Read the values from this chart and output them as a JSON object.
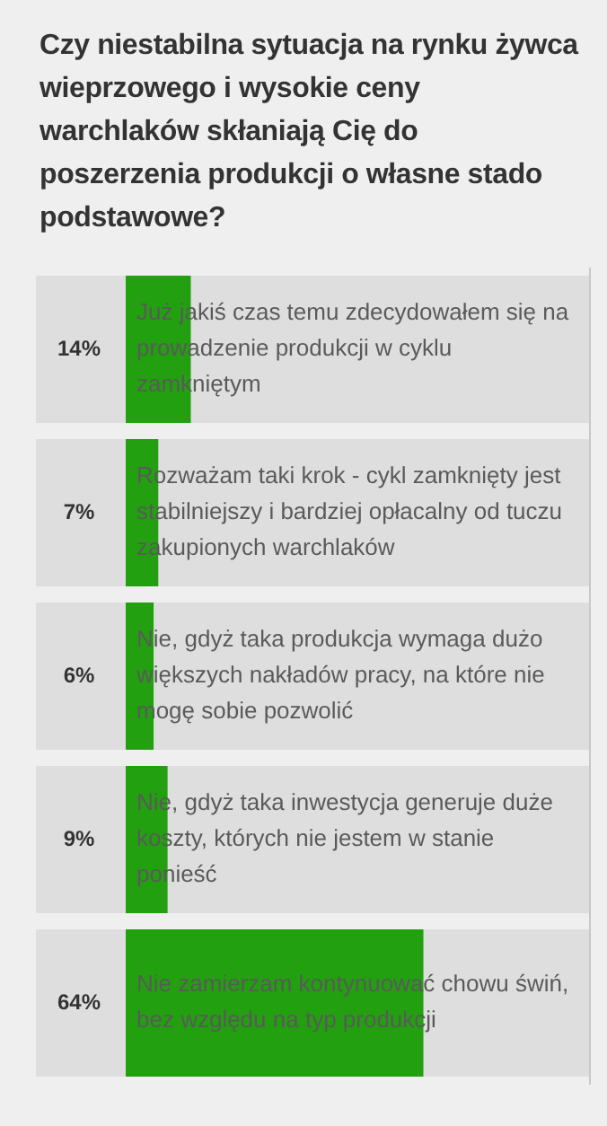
{
  "chart_data": {
    "type": "bar",
    "orientation": "horizontal",
    "title": "Czy niestabilna sytuacja na rynku żywca wieprzowego i wysokie ceny warchlaków skłaniają Cię do poszerzenia produkcji o własne stado podstawowe?",
    "categories": [
      "Już jakiś czas temu zdecydowałem się na prowadzenie produkcji w cyklu zamkniętym",
      "Rozważam taki krok - cykl zamknięty jest stabilniejszy i bardziej opłacalny od tuczu zakupionych warchlaków",
      "Nie, gdyż taka produkcja wymaga dużo większych nakładów pracy, na które nie mogę sobie pozwolić",
      "Nie, gdyż taka inwestycja generuje duże koszty, których nie jestem w stanie ponieść",
      "Nie zamierzam kontynuować chowu świń, bez względu na typ produkcji"
    ],
    "values": [
      14,
      7,
      6,
      9,
      64
    ],
    "value_labels": [
      "14%",
      "7%",
      "6%",
      "9%",
      "64%"
    ],
    "color": "#22a010",
    "xlim": [
      0,
      100
    ],
    "tick_labels": "y"
  }
}
